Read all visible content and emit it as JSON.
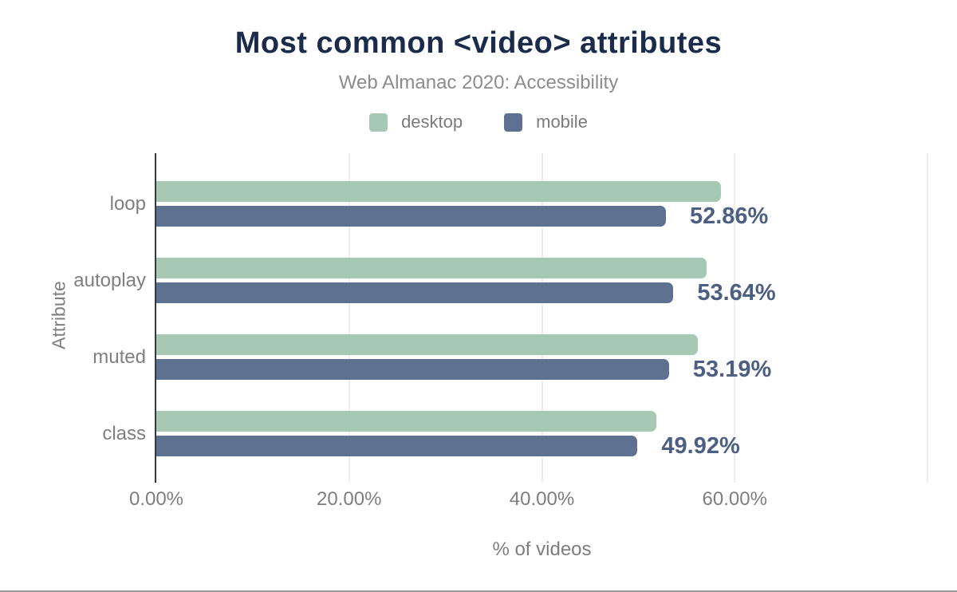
{
  "chart_data": {
    "type": "bar",
    "orientation": "horizontal",
    "title": "Most common <video> attributes",
    "subtitle": "Web Almanac 2020: Accessibility",
    "categories": [
      "loop",
      "autoplay",
      "muted",
      "class"
    ],
    "series": [
      {
        "name": "desktop",
        "color": "#a6c9b6",
        "values": [
          58.6,
          57.1,
          56.2,
          51.9
        ]
      },
      {
        "name": "mobile",
        "color": "#5f7191",
        "values": [
          52.86,
          53.64,
          53.19,
          49.92
        ]
      }
    ],
    "data_labels": {
      "on_series": "mobile",
      "values": [
        "52.86%",
        "53.64%",
        "53.19%",
        "49.92%"
      ],
      "color": "#4c5f83"
    },
    "xlabel": "% of videos",
    "ylabel": "Attribute",
    "xlim": [
      0,
      80
    ],
    "xticks": [
      {
        "value": 0,
        "label": "0.00%"
      },
      {
        "value": 20,
        "label": "20.00%"
      },
      {
        "value": 40,
        "label": "40.00%"
      },
      {
        "value": 60,
        "label": "60.00%"
      },
      {
        "value": 80,
        "label": ""
      }
    ],
    "grid": true,
    "legend_position": "top",
    "axis_color": "#33383d",
    "gridline_color": "#ededed"
  }
}
